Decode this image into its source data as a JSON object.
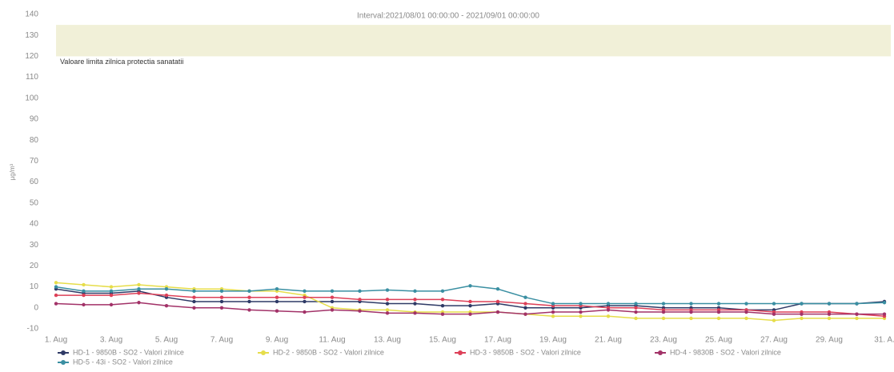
{
  "chart_data": {
    "type": "line",
    "title": "Interval:2021/08/01 00:00:00 - 2021/09/01 00:00:00",
    "y_label": "µg/m³",
    "plot_band": {
      "from": 120,
      "to": 135,
      "label": "Valoare limita zilnica protectia sanatatii",
      "color": "#f1f0d8"
    },
    "categories": [
      "1. Aug",
      null,
      "3. Aug",
      null,
      "5. Aug",
      null,
      "7. Aug",
      null,
      "9. Aug",
      null,
      "11. Aug",
      null,
      "13. Aug",
      null,
      "15. Aug",
      null,
      "17. Aug",
      null,
      "19. Aug",
      null,
      "21. Aug",
      null,
      "23. Aug",
      null,
      "25. Aug",
      null,
      "27. Aug",
      null,
      "29. Aug",
      null,
      "31. A."
    ],
    "ylim": [
      -10,
      140
    ],
    "yticks": [
      -10,
      0,
      10,
      20,
      30,
      40,
      50,
      60,
      70,
      80,
      90,
      100,
      110,
      120,
      130,
      140
    ],
    "grid": false,
    "legend": "bottom",
    "series": [
      {
        "name": "HD-1 - 9850B - SO2 - Valori zilnice",
        "color": "#2f3a66",
        "values": [
          9,
          7,
          7,
          8,
          5,
          3,
          3,
          3,
          3,
          3,
          3,
          3,
          2,
          2,
          1,
          1,
          2,
          0,
          0,
          0,
          1,
          1,
          0,
          0,
          0,
          -1,
          -1,
          2,
          2,
          2,
          3
        ]
      },
      {
        "name": "HD-2 - 9850B - SO2 - Valori zilnice",
        "color": "#e6dd4a",
        "values": [
          12,
          11,
          10,
          11,
          10,
          9,
          9,
          8,
          8,
          6,
          0,
          -1,
          -1,
          -2,
          -2,
          -2,
          -2,
          -3,
          -4,
          -4,
          -4,
          -5,
          -5,
          -5,
          -5,
          -5,
          -6,
          -5,
          -5,
          -5,
          -5
        ]
      },
      {
        "name": "HD-3 - 9850B - SO2 - Valori zilnice",
        "color": "#dd4058",
        "values": [
          6,
          6,
          6,
          7,
          6,
          5,
          5,
          5,
          5,
          5,
          5,
          4,
          4,
          4,
          4,
          3,
          3,
          2,
          1,
          1,
          0,
          0,
          -1,
          -1,
          -1,
          -1,
          -2,
          -2,
          -2,
          -3,
          -4
        ]
      },
      {
        "name": "HD-4 - 9830B - SO2 - Valori zilnice",
        "color": "#a23268",
        "values": [
          2,
          1.5,
          1.5,
          2.5,
          1,
          0,
          0,
          -1,
          -1.5,
          -2,
          -1,
          -1.5,
          -2.5,
          -2.5,
          -3,
          -3,
          -2,
          -3,
          -2,
          -2,
          -1,
          -2,
          -2,
          -2,
          -2,
          -2,
          -3,
          -3,
          -3,
          -3,
          -3
        ]
      },
      {
        "name": "HD-5 - 43i - SO2 - Valori zilnice",
        "color": "#3a8fa2",
        "values": [
          10,
          8,
          8,
          9,
          9,
          8,
          8,
          8,
          9,
          8,
          8,
          8,
          8.5,
          8,
          8,
          10.5,
          9,
          5,
          2,
          2,
          2,
          2,
          2,
          2,
          2,
          2,
          2,
          2,
          2,
          2,
          2.5
        ]
      }
    ]
  }
}
